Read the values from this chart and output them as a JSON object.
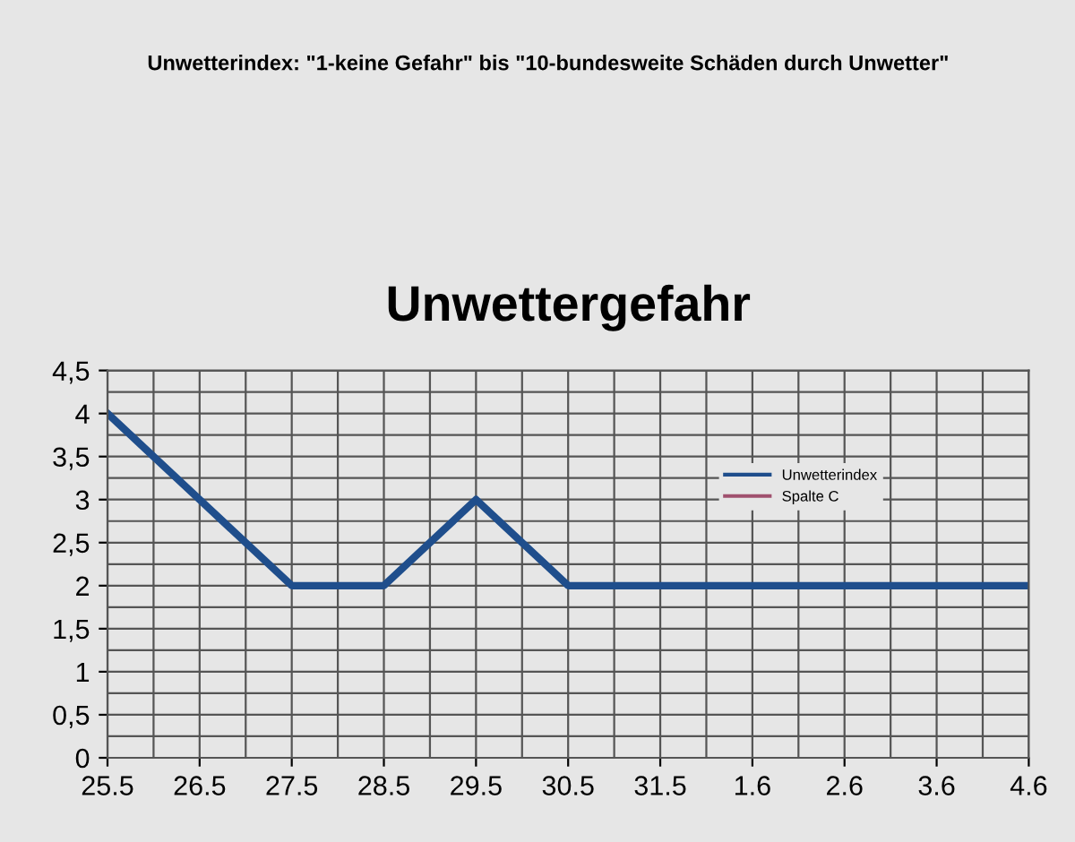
{
  "chart_data": {
    "type": "line",
    "title": "Unwettergefahr",
    "annotations": [
      "Unwetterindex: \"1-keine Gefahr\" bis \"10-bundesweite Schäden durch Unwetter\""
    ],
    "categories": [
      "25.5",
      "26.5",
      "27.5",
      "28.5",
      "29.5",
      "30.5",
      "31.5",
      "1.6",
      "2.6",
      "3.6",
      "4.6"
    ],
    "series": [
      {
        "name": "Unwetterindex",
        "color": "#1f4e8c",
        "values": [
          4,
          3,
          2,
          2,
          3,
          2,
          2,
          2,
          2,
          2,
          2
        ]
      },
      {
        "name": "Spalte C",
        "color": "#a0506e",
        "values": [
          null,
          null,
          null,
          null,
          null,
          null,
          null,
          null,
          null,
          null,
          null
        ]
      }
    ],
    "ylim": [
      0,
      4.5
    ],
    "yticks": [
      0,
      {
        "value": 0.5,
        "label": "0,5"
      },
      1,
      {
        "value": 1.5,
        "label": "1,5"
      },
      2,
      {
        "value": 2.5,
        "label": "2,5"
      },
      3,
      {
        "value": 3.5,
        "label": "3,5"
      },
      4,
      {
        "value": 4.5,
        "label": "4,5"
      }
    ],
    "grid": true,
    "legend": "right",
    "marker": "none",
    "line_style": "solid"
  }
}
